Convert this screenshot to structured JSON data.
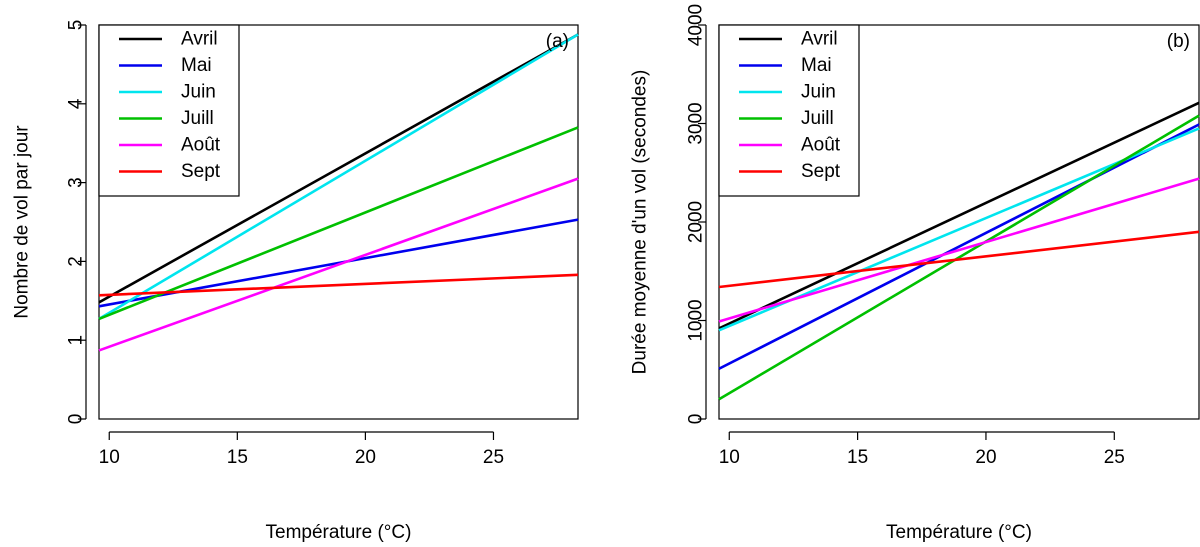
{
  "chart_data": [
    {
      "type": "line",
      "panel_label": "(a)",
      "xlabel": "Température (°C)",
      "ylabel": "Nombre de vol par jour",
      "xlim": [
        9.6,
        28.3
      ],
      "ylim": [
        0,
        5
      ],
      "xticks": [
        10,
        15,
        20,
        25
      ],
      "yticks": [
        0,
        1,
        2,
        3,
        4,
        5
      ],
      "legend_position": "top-left",
      "x": [
        9.6,
        28.3
      ],
      "series": [
        {
          "name": "Avril",
          "color": "#000000",
          "values": [
            1.48,
            4.88
          ]
        },
        {
          "name": "Mai",
          "color": "#0000ee",
          "values": [
            1.43,
            2.53
          ]
        },
        {
          "name": "Juin",
          "color": "#00e5ee",
          "values": [
            1.27,
            4.88
          ]
        },
        {
          "name": "Juill",
          "color": "#00c000",
          "values": [
            1.27,
            3.7
          ]
        },
        {
          "name": "Août",
          "color": "#ff00ff",
          "values": [
            0.87,
            3.05
          ]
        },
        {
          "name": "Sept",
          "color": "#ff0000",
          "values": [
            1.57,
            1.83
          ]
        }
      ]
    },
    {
      "type": "line",
      "panel_label": "(b)",
      "xlabel": "Température (°C)",
      "ylabel": "Durée moyenne d'un vol (secondes)",
      "xlim": [
        9.6,
        28.3
      ],
      "ylim": [
        0,
        4000
      ],
      "xticks": [
        10,
        15,
        20,
        25
      ],
      "yticks": [
        0,
        1000,
        2000,
        3000,
        4000
      ],
      "legend_position": "top-left",
      "x": [
        9.6,
        28.3
      ],
      "series": [
        {
          "name": "Avril",
          "color": "#000000",
          "values": [
            920,
            3210
          ]
        },
        {
          "name": "Mai",
          "color": "#0000ee",
          "values": [
            510,
            2990
          ]
        },
        {
          "name": "Juin",
          "color": "#00e5ee",
          "values": [
            900,
            2950
          ]
        },
        {
          "name": "Juill",
          "color": "#00c000",
          "values": [
            200,
            3080
          ]
        },
        {
          "name": "Août",
          "color": "#ff00ff",
          "values": [
            990,
            2440
          ]
        },
        {
          "name": "Sept",
          "color": "#ff0000",
          "values": [
            1340,
            1900
          ]
        }
      ]
    }
  ]
}
